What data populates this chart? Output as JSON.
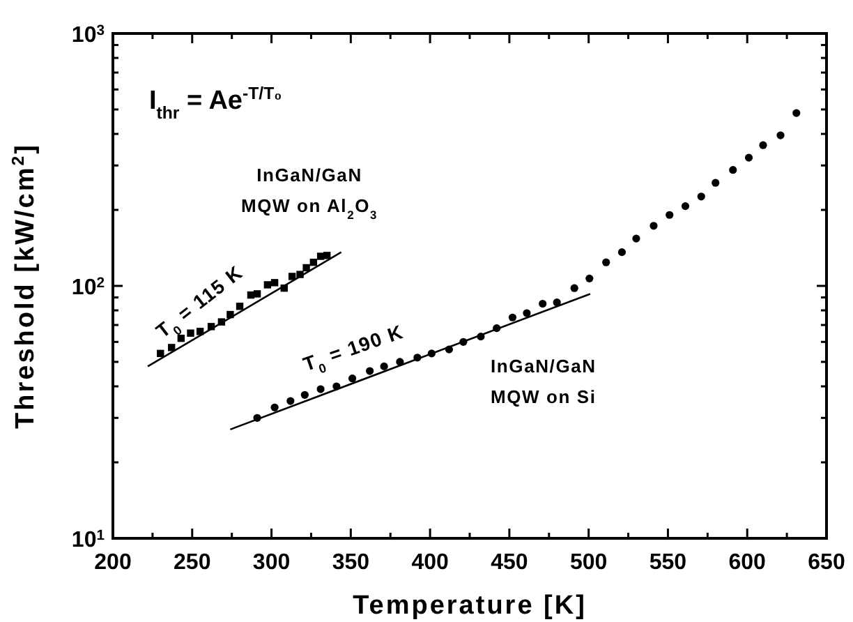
{
  "chart_data": {
    "type": "scatter",
    "xlabel": "Temperature [K]",
    "ylabel": "Threshold [kW/cm$^{2}$]",
    "xlim": [
      200,
      650
    ],
    "ylim": [
      10,
      1000
    ],
    "log": "y",
    "grid": false,
    "xticks": [
      200,
      {
        "value": 225,
        "label": null
      },
      250,
      {
        "value": 275,
        "label": null
      },
      300,
      {
        "value": 325,
        "label": null
      },
      350,
      {
        "value": 375,
        "label": null
      },
      400,
      {
        "value": 425,
        "label": null
      },
      450,
      {
        "value": 475,
        "label": null
      },
      500,
      {
        "value": 525,
        "label": null
      },
      550,
      {
        "value": 575,
        "label": null
      },
      600,
      {
        "value": 625,
        "label": null
      },
      650
    ],
    "yticks": [
      {
        "value": 10,
        "label": "10$^{1}$"
      },
      {
        "value": 20,
        "label": null
      },
      {
        "value": 30,
        "label": null
      },
      {
        "value": 40,
        "label": null
      },
      {
        "value": 50,
        "label": null
      },
      {
        "value": 60,
        "label": null
      },
      {
        "value": 70,
        "label": null
      },
      {
        "value": 80,
        "label": null
      },
      {
        "value": 90,
        "label": null
      },
      {
        "value": 100,
        "label": "10$^{2}$"
      },
      {
        "value": 200,
        "label": null
      },
      {
        "value": 300,
        "label": null
      },
      {
        "value": 400,
        "label": null
      },
      {
        "value": 500,
        "label": null
      },
      {
        "value": 600,
        "label": null
      },
      {
        "value": 700,
        "label": null
      },
      {
        "value": 800,
        "label": null
      },
      {
        "value": 900,
        "label": null
      },
      {
        "value": 1000,
        "label": "10$^{3}$"
      }
    ],
    "series": [
      {
        "marker": "square",
        "color": "#000000",
        "x": [
          230,
          237,
          243,
          249,
          255,
          262,
          268.5,
          274,
          280,
          287,
          291,
          297.5,
          302,
          308,
          313,
          318,
          322,
          326.5,
          331,
          335
        ],
        "values": [
          54,
          57,
          62,
          65,
          66,
          69,
          72,
          77,
          83,
          92,
          93,
          101,
          103,
          98,
          109,
          111,
          118,
          124,
          131,
          132
        ]
      },
      {
        "marker": "circle",
        "color": "#000000",
        "x": [
          291,
          302,
          312,
          321,
          331,
          341,
          351,
          362,
          371,
          381,
          392,
          401,
          412,
          421,
          432,
          442,
          452,
          461,
          471,
          480,
          491,
          500.5,
          511,
          521,
          530,
          541,
          551,
          561,
          571,
          580,
          591,
          601,
          610,
          621,
          631
        ],
        "values": [
          30,
          33,
          35,
          37,
          39,
          40,
          43,
          46,
          48,
          50,
          52,
          54,
          56,
          60,
          63,
          68,
          75,
          78,
          85,
          86,
          98,
          107,
          124,
          136,
          154,
          173,
          191,
          207,
          226,
          256,
          288,
          322,
          361,
          395,
          484
        ]
      },
      {
        "type": "line",
        "marker": "none",
        "line_style": "solid",
        "color": "#000000",
        "x": [
          222,
          344
        ],
        "values": [
          48,
          136
        ]
      },
      {
        "type": "line",
        "marker": "none",
        "line_style": "solid",
        "color": "#000000",
        "x": [
          274,
          501
        ],
        "values": [
          27,
          93
        ]
      }
    ],
    "annotations": [
      "I$_{thr}$ = Ae$^{-T/T₀}$",
      "InGaN/GaN",
      "MQW on Al$_{2}$O$_{3}$",
      "T$_{0}$ = 115 K",
      "T$_{0}$ = 190 K",
      "InGaN/GaN",
      "MQW on Si"
    ]
  }
}
